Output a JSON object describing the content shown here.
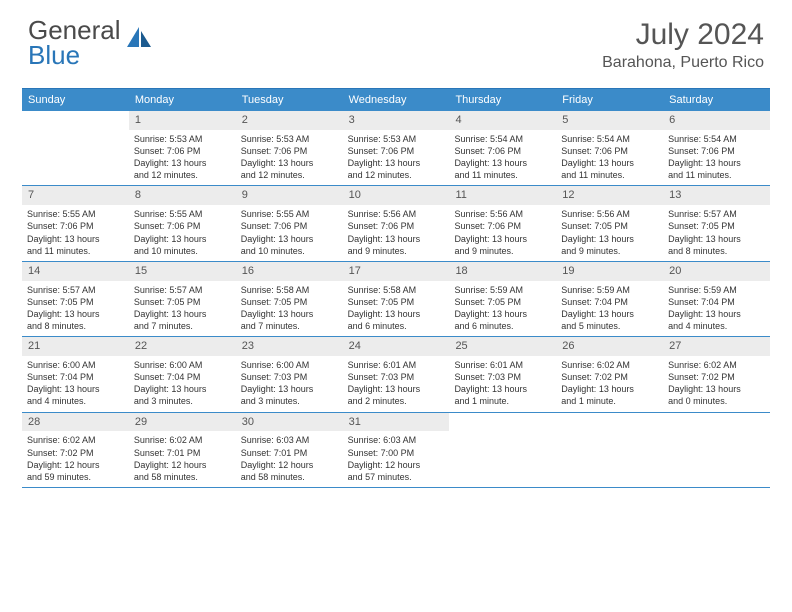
{
  "brand": {
    "part1": "General",
    "part2": "Blue"
  },
  "title": "July 2024",
  "location": "Barahona, Puerto Rico",
  "colors": {
    "header_bg": "#3b8bc9",
    "rule": "#2976b8",
    "daynum_bg": "#ececec",
    "text": "#333333",
    "title_text": "#555555"
  },
  "dow": [
    "Sunday",
    "Monday",
    "Tuesday",
    "Wednesday",
    "Thursday",
    "Friday",
    "Saturday"
  ],
  "weeks": [
    [
      {
        "n": "",
        "lines": []
      },
      {
        "n": "1",
        "lines": [
          "Sunrise: 5:53 AM",
          "Sunset: 7:06 PM",
          "Daylight: 13 hours",
          "and 12 minutes."
        ]
      },
      {
        "n": "2",
        "lines": [
          "Sunrise: 5:53 AM",
          "Sunset: 7:06 PM",
          "Daylight: 13 hours",
          "and 12 minutes."
        ]
      },
      {
        "n": "3",
        "lines": [
          "Sunrise: 5:53 AM",
          "Sunset: 7:06 PM",
          "Daylight: 13 hours",
          "and 12 minutes."
        ]
      },
      {
        "n": "4",
        "lines": [
          "Sunrise: 5:54 AM",
          "Sunset: 7:06 PM",
          "Daylight: 13 hours",
          "and 11 minutes."
        ]
      },
      {
        "n": "5",
        "lines": [
          "Sunrise: 5:54 AM",
          "Sunset: 7:06 PM",
          "Daylight: 13 hours",
          "and 11 minutes."
        ]
      },
      {
        "n": "6",
        "lines": [
          "Sunrise: 5:54 AM",
          "Sunset: 7:06 PM",
          "Daylight: 13 hours",
          "and 11 minutes."
        ]
      }
    ],
    [
      {
        "n": "7",
        "lines": [
          "Sunrise: 5:55 AM",
          "Sunset: 7:06 PM",
          "Daylight: 13 hours",
          "and 11 minutes."
        ]
      },
      {
        "n": "8",
        "lines": [
          "Sunrise: 5:55 AM",
          "Sunset: 7:06 PM",
          "Daylight: 13 hours",
          "and 10 minutes."
        ]
      },
      {
        "n": "9",
        "lines": [
          "Sunrise: 5:55 AM",
          "Sunset: 7:06 PM",
          "Daylight: 13 hours",
          "and 10 minutes."
        ]
      },
      {
        "n": "10",
        "lines": [
          "Sunrise: 5:56 AM",
          "Sunset: 7:06 PM",
          "Daylight: 13 hours",
          "and 9 minutes."
        ]
      },
      {
        "n": "11",
        "lines": [
          "Sunrise: 5:56 AM",
          "Sunset: 7:06 PM",
          "Daylight: 13 hours",
          "and 9 minutes."
        ]
      },
      {
        "n": "12",
        "lines": [
          "Sunrise: 5:56 AM",
          "Sunset: 7:05 PM",
          "Daylight: 13 hours",
          "and 9 minutes."
        ]
      },
      {
        "n": "13",
        "lines": [
          "Sunrise: 5:57 AM",
          "Sunset: 7:05 PM",
          "Daylight: 13 hours",
          "and 8 minutes."
        ]
      }
    ],
    [
      {
        "n": "14",
        "lines": [
          "Sunrise: 5:57 AM",
          "Sunset: 7:05 PM",
          "Daylight: 13 hours",
          "and 8 minutes."
        ]
      },
      {
        "n": "15",
        "lines": [
          "Sunrise: 5:57 AM",
          "Sunset: 7:05 PM",
          "Daylight: 13 hours",
          "and 7 minutes."
        ]
      },
      {
        "n": "16",
        "lines": [
          "Sunrise: 5:58 AM",
          "Sunset: 7:05 PM",
          "Daylight: 13 hours",
          "and 7 minutes."
        ]
      },
      {
        "n": "17",
        "lines": [
          "Sunrise: 5:58 AM",
          "Sunset: 7:05 PM",
          "Daylight: 13 hours",
          "and 6 minutes."
        ]
      },
      {
        "n": "18",
        "lines": [
          "Sunrise: 5:59 AM",
          "Sunset: 7:05 PM",
          "Daylight: 13 hours",
          "and 6 minutes."
        ]
      },
      {
        "n": "19",
        "lines": [
          "Sunrise: 5:59 AM",
          "Sunset: 7:04 PM",
          "Daylight: 13 hours",
          "and 5 minutes."
        ]
      },
      {
        "n": "20",
        "lines": [
          "Sunrise: 5:59 AM",
          "Sunset: 7:04 PM",
          "Daylight: 13 hours",
          "and 4 minutes."
        ]
      }
    ],
    [
      {
        "n": "21",
        "lines": [
          "Sunrise: 6:00 AM",
          "Sunset: 7:04 PM",
          "Daylight: 13 hours",
          "and 4 minutes."
        ]
      },
      {
        "n": "22",
        "lines": [
          "Sunrise: 6:00 AM",
          "Sunset: 7:04 PM",
          "Daylight: 13 hours",
          "and 3 minutes."
        ]
      },
      {
        "n": "23",
        "lines": [
          "Sunrise: 6:00 AM",
          "Sunset: 7:03 PM",
          "Daylight: 13 hours",
          "and 3 minutes."
        ]
      },
      {
        "n": "24",
        "lines": [
          "Sunrise: 6:01 AM",
          "Sunset: 7:03 PM",
          "Daylight: 13 hours",
          "and 2 minutes."
        ]
      },
      {
        "n": "25",
        "lines": [
          "Sunrise: 6:01 AM",
          "Sunset: 7:03 PM",
          "Daylight: 13 hours",
          "and 1 minute."
        ]
      },
      {
        "n": "26",
        "lines": [
          "Sunrise: 6:02 AM",
          "Sunset: 7:02 PM",
          "Daylight: 13 hours",
          "and 1 minute."
        ]
      },
      {
        "n": "27",
        "lines": [
          "Sunrise: 6:02 AM",
          "Sunset: 7:02 PM",
          "Daylight: 13 hours",
          "and 0 minutes."
        ]
      }
    ],
    [
      {
        "n": "28",
        "lines": [
          "Sunrise: 6:02 AM",
          "Sunset: 7:02 PM",
          "Daylight: 12 hours",
          "and 59 minutes."
        ]
      },
      {
        "n": "29",
        "lines": [
          "Sunrise: 6:02 AM",
          "Sunset: 7:01 PM",
          "Daylight: 12 hours",
          "and 58 minutes."
        ]
      },
      {
        "n": "30",
        "lines": [
          "Sunrise: 6:03 AM",
          "Sunset: 7:01 PM",
          "Daylight: 12 hours",
          "and 58 minutes."
        ]
      },
      {
        "n": "31",
        "lines": [
          "Sunrise: 6:03 AM",
          "Sunset: 7:00 PM",
          "Daylight: 12 hours",
          "and 57 minutes."
        ]
      },
      {
        "n": "",
        "lines": []
      },
      {
        "n": "",
        "lines": []
      },
      {
        "n": "",
        "lines": []
      }
    ]
  ]
}
